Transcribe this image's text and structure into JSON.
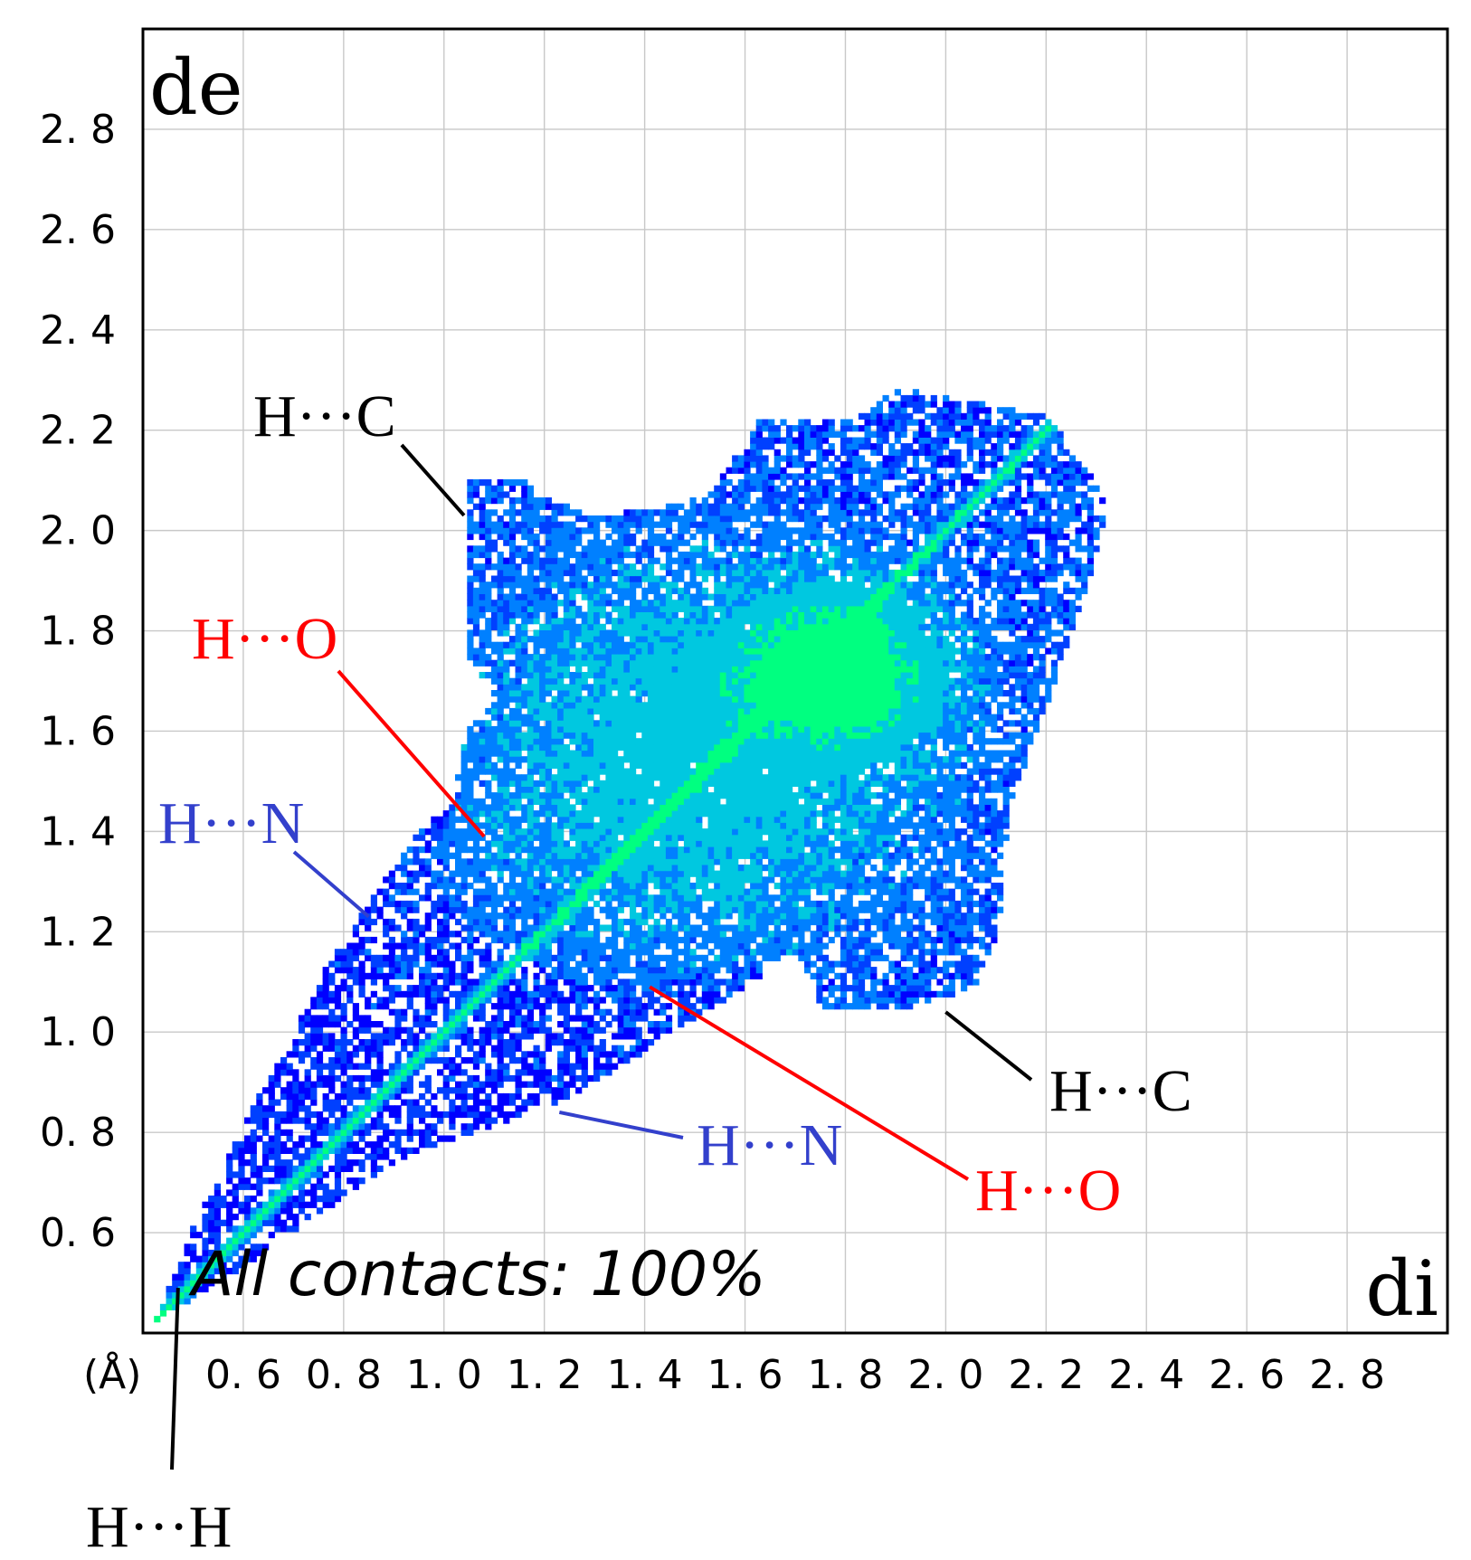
{
  "chart_data": {
    "type": "heatmap",
    "subtype": "hirshfeld-fingerprint-plot",
    "x_axis_label": "di",
    "y_axis_label": "de",
    "unit_label": "(Å)",
    "xlim": [
      0.4,
      3.0
    ],
    "ylim": [
      0.4,
      3.0
    ],
    "grid": true,
    "grid_step": 0.2,
    "x_tick_labels": [
      "0. 6",
      "0. 8",
      "1. 0",
      "1. 2",
      "1. 4",
      "1. 6",
      "1. 8",
      "2. 0",
      "2. 2",
      "2. 4",
      "2. 6",
      "2. 8"
    ],
    "x_tick_values": [
      0.6,
      0.8,
      1.0,
      1.2,
      1.4,
      1.6,
      1.8,
      2.0,
      2.2,
      2.4,
      2.6,
      2.8
    ],
    "y_tick_labels": [
      "2. 8",
      "2. 6",
      "2. 4",
      "2. 2",
      "2. 0",
      "1. 8",
      "1. 6",
      "1. 4",
      "1. 2",
      "1. 0",
      "0. 8",
      "0. 6"
    ],
    "y_tick_values": [
      2.8,
      2.6,
      2.4,
      2.2,
      2.0,
      1.8,
      1.6,
      1.4,
      1.2,
      1.0,
      0.8,
      0.6
    ],
    "caption": "All contacts: 100%",
    "colors": {
      "low": "#0000ff",
      "mid": "#0080ff",
      "high": "#00ff80",
      "frame": "#000000",
      "grid": "#c8c8c8"
    },
    "annotations": [
      {
        "text": "H···C",
        "color": "#000000",
        "point": [
          1.04,
          2.03
        ]
      },
      {
        "text": "H···O",
        "color": "#ff0000",
        "point": [
          1.08,
          1.39
        ]
      },
      {
        "text": "H···N",
        "color": "#3340cc",
        "point": [
          0.85,
          1.23
        ]
      },
      {
        "text": "H···C",
        "color": "#000000",
        "point": [
          2.0,
          1.04
        ]
      },
      {
        "text": "H···O",
        "color": "#ff0000",
        "point": [
          1.41,
          1.09
        ]
      },
      {
        "text": "H···N",
        "color": "#3340cc",
        "point": [
          1.23,
          0.84
        ]
      },
      {
        "text": "H···H",
        "color": "#000000",
        "point": [
          0.47,
          0.49
        ]
      }
    ]
  }
}
